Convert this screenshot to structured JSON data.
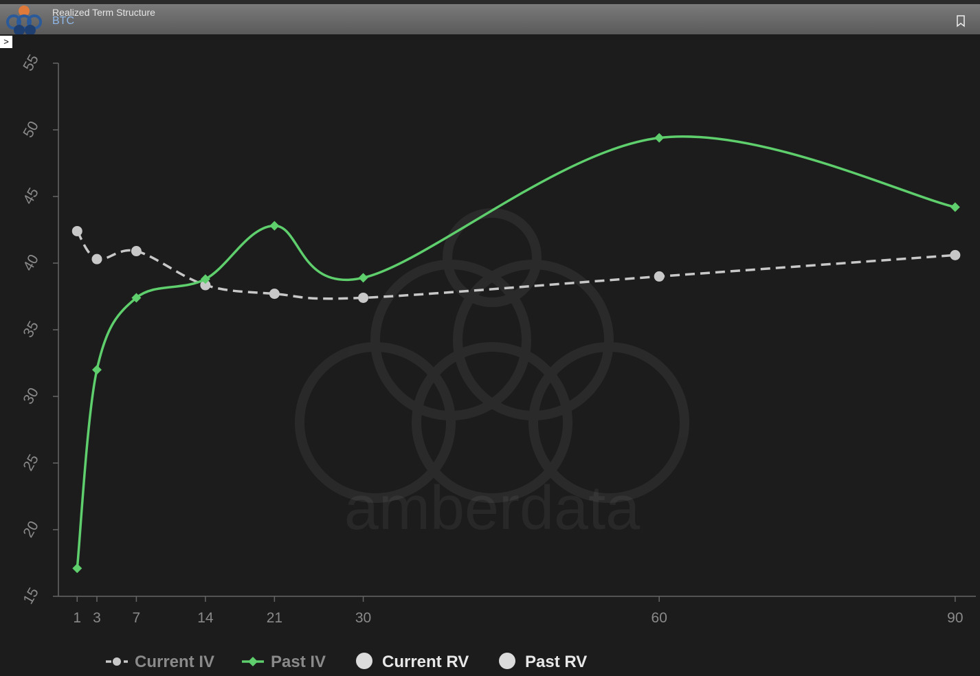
{
  "header": {
    "title": "Realized Term Structure",
    "subtitle": "BTC"
  },
  "watermark": "amberdata",
  "chart_data": {
    "type": "line",
    "x": [
      1,
      3,
      7,
      14,
      21,
      30,
      60,
      90
    ],
    "xlim": [
      -0.9,
      92.1
    ],
    "xticks": [
      1,
      3,
      7,
      14,
      21,
      30,
      60,
      90
    ],
    "ylim": [
      15,
      55
    ],
    "yticks": [
      15,
      20,
      25,
      30,
      35,
      40,
      45,
      50,
      55
    ],
    "series": [
      {
        "name": "Current IV",
        "color": "#c8c8c8",
        "marker": "circle",
        "dash": true,
        "values": [
          42.4,
          40.3,
          40.9,
          38.35,
          37.7,
          37.4,
          39.0,
          40.6
        ]
      },
      {
        "name": "Past IV",
        "color": "#5ecf6c",
        "marker": "diamond",
        "dash": false,
        "values": [
          17.1,
          32.0,
          37.4,
          38.8,
          42.8,
          38.9,
          49.4,
          44.2
        ]
      },
      {
        "name": "Current RV",
        "color": "#dcdcdc",
        "marker": "circle",
        "dash": false,
        "values": [
          null,
          null,
          null,
          null,
          null,
          null,
          null,
          null
        ]
      },
      {
        "name": "Past RV",
        "color": "#dcdcdc",
        "marker": "circle",
        "dash": false,
        "values": [
          null,
          null,
          null,
          null,
          null,
          null,
          null,
          null
        ]
      }
    ]
  }
}
